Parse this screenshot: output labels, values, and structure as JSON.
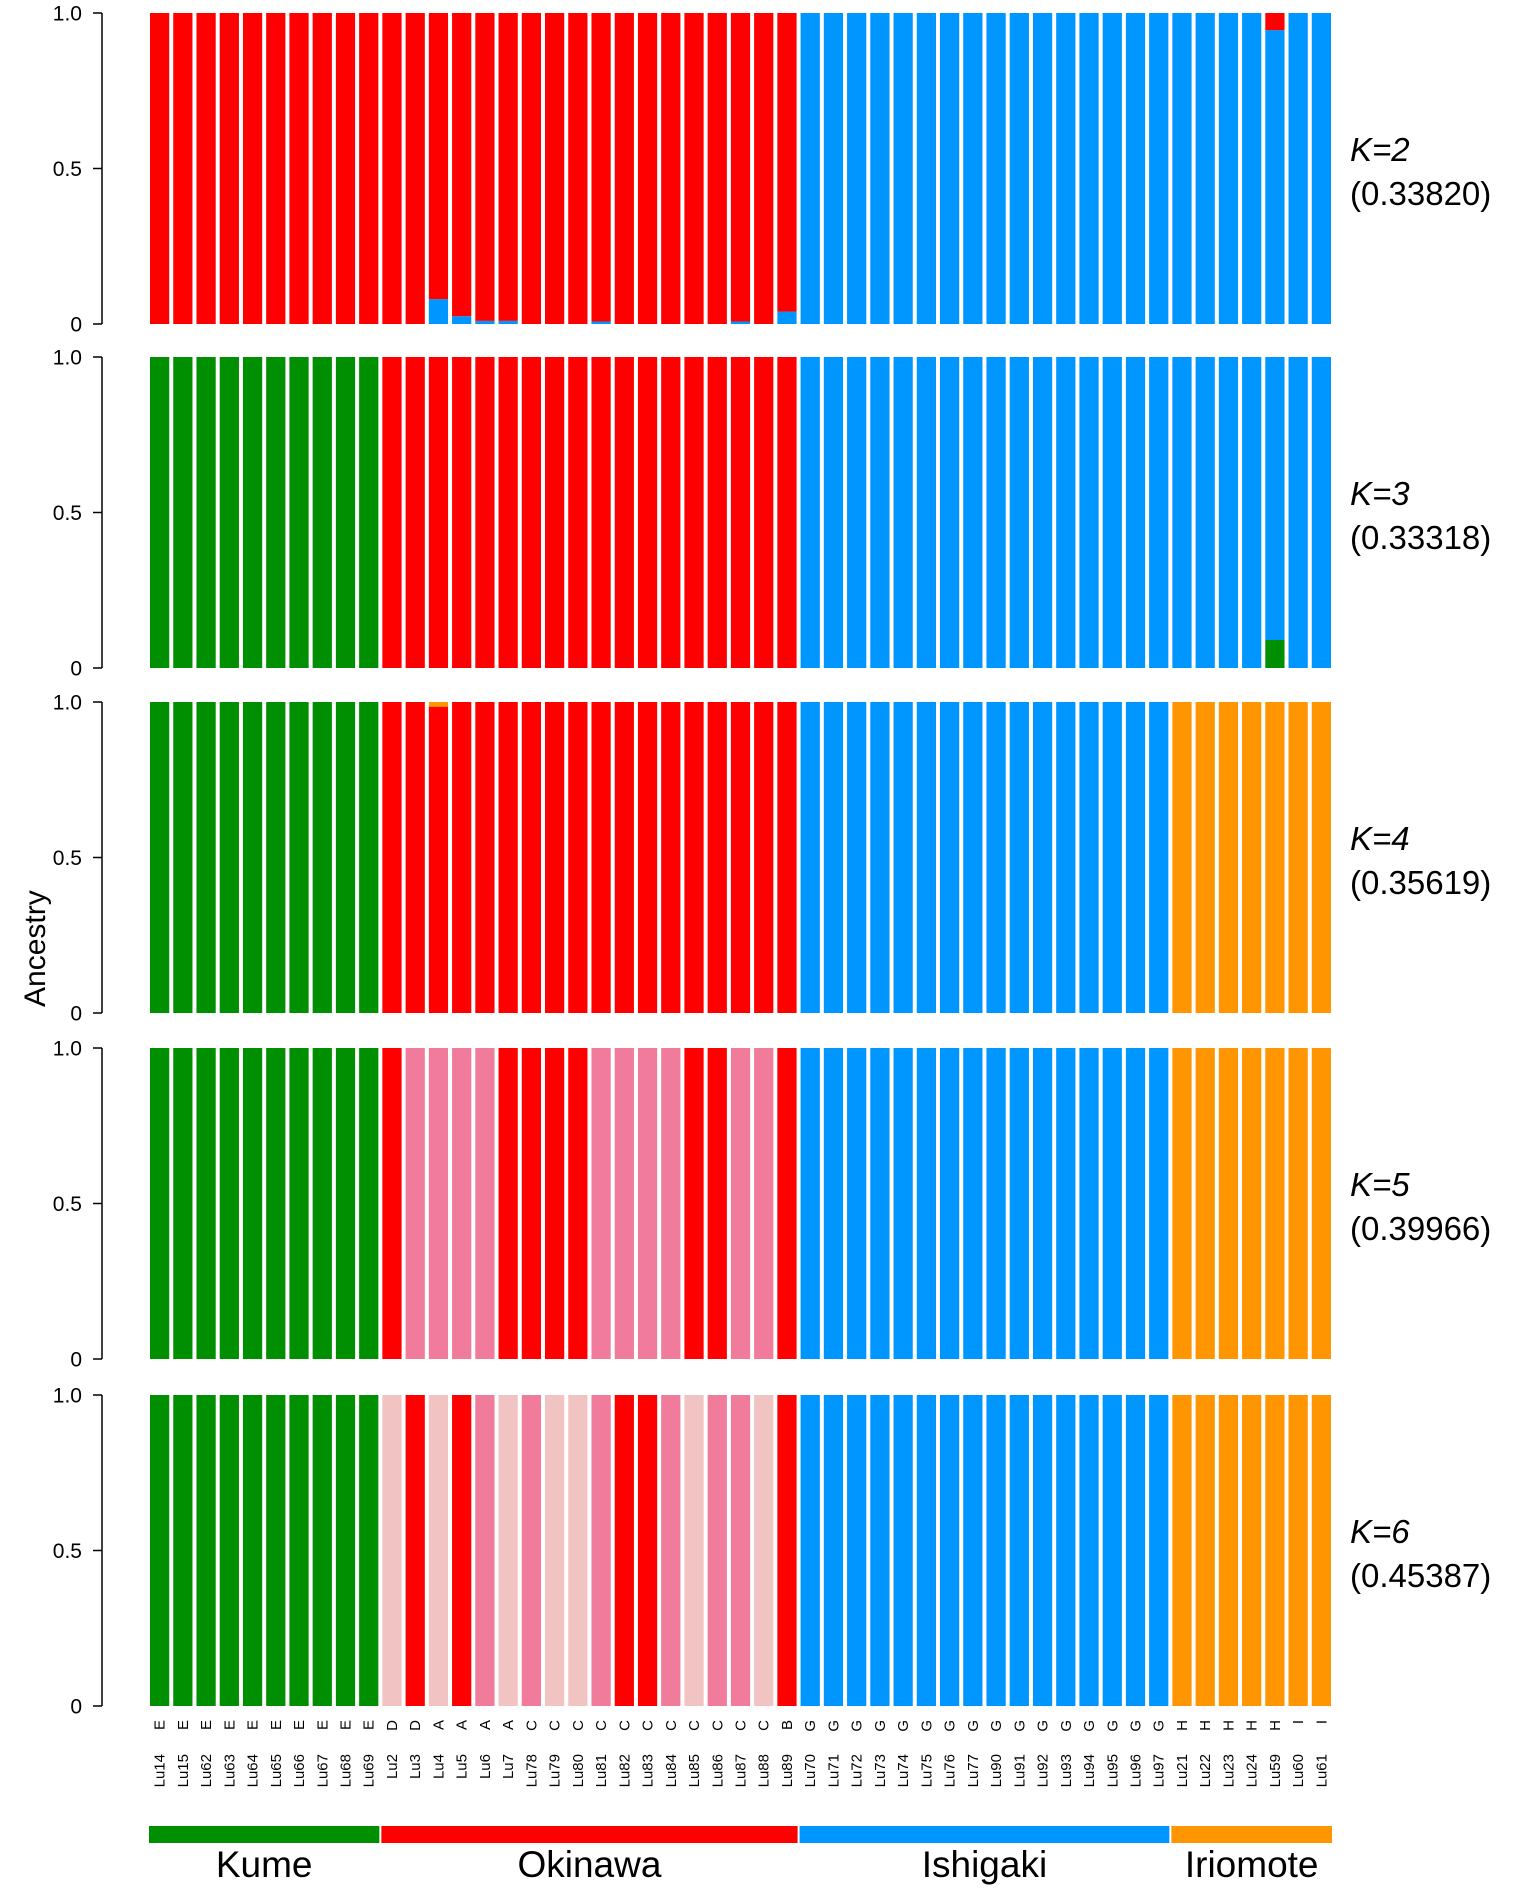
{
  "y_axis_label": "Ancestry",
  "colors": {
    "green": "#008f00",
    "red": "#ff0000",
    "pink": "#f07b9a",
    "lightpink": "#f1c3c2",
    "blue": "#0096ff",
    "orange": "#ff9500"
  },
  "chart_data": {
    "type": "bar",
    "stacked": true,
    "ylim": [
      0,
      1
    ],
    "yticks": [
      "0",
      "0.5",
      "1.0"
    ],
    "samples": [
      "Lu14",
      "Lu15",
      "Lu62",
      "Lu63",
      "Lu64",
      "Lu65",
      "Lu66",
      "Lu67",
      "Lu68",
      "Lu69",
      "Lu2",
      "Lu3",
      "Lu4",
      "Lu5",
      "Lu6",
      "Lu7",
      "Lu78",
      "Lu79",
      "Lu80",
      "Lu81",
      "Lu82",
      "Lu83",
      "Lu84",
      "Lu85",
      "Lu86",
      "Lu87",
      "Lu88",
      "Lu89",
      "Lu70",
      "Lu71",
      "Lu72",
      "Lu73",
      "Lu74",
      "Lu75",
      "Lu76",
      "Lu77",
      "Lu90",
      "Lu91",
      "Lu92",
      "Lu93",
      "Lu94",
      "Lu95",
      "Lu96",
      "Lu97",
      "Lu21",
      "Lu22",
      "Lu23",
      "Lu24",
      "Lu59",
      "Lu60",
      "Lu61"
    ],
    "groups": [
      "E",
      "E",
      "E",
      "E",
      "E",
      "E",
      "E",
      "E",
      "E",
      "E",
      "D",
      "D",
      "A",
      "A",
      "A",
      "A",
      "C",
      "C",
      "C",
      "C",
      "C",
      "C",
      "C",
      "C",
      "C",
      "C",
      "C",
      "B",
      "G",
      "G",
      "G",
      "G",
      "G",
      "G",
      "G",
      "G",
      "G",
      "G",
      "G",
      "G",
      "G",
      "G",
      "G",
      "G",
      "H",
      "H",
      "H",
      "H",
      "H",
      "I",
      "I"
    ],
    "populations": [
      {
        "name": "Kume",
        "start": 0,
        "end": 9,
        "color": "#008f00"
      },
      {
        "name": "Okinawa",
        "start": 10,
        "end": 27,
        "color": "#ff0000"
      },
      {
        "name": "Ishigaki",
        "start": 28,
        "end": 43,
        "color": "#0096ff"
      },
      {
        "name": "Iriomote",
        "start": 44,
        "end": 50,
        "color": "#ff9500"
      }
    ],
    "panels": [
      {
        "k": "K=2",
        "ll": "(0.33820)",
        "base": [
          "red",
          "red",
          "red",
          "red",
          "red",
          "red",
          "red",
          "red",
          "red",
          "red",
          "red",
          "red",
          "red",
          "red",
          "red",
          "red",
          "red",
          "red",
          "red",
          "red",
          "red",
          "red",
          "red",
          "red",
          "red",
          "red",
          "red",
          "red",
          "blue",
          "blue",
          "blue",
          "blue",
          "blue",
          "blue",
          "blue",
          "blue",
          "blue",
          "blue",
          "blue",
          "blue",
          "blue",
          "blue",
          "blue",
          "blue",
          "blue",
          "blue",
          "blue",
          "blue",
          "blue",
          "blue",
          "blue"
        ],
        "mix": [
          {
            "i": 12,
            "comps": [
              [
                "blue",
                0.08
              ],
              [
                "red",
                0.92
              ]
            ]
          },
          {
            "i": 13,
            "comps": [
              [
                "blue",
                0.025
              ],
              [
                "red",
                0.975
              ]
            ]
          },
          {
            "i": 14,
            "comps": [
              [
                "blue",
                0.01
              ],
              [
                "red",
                0.99
              ]
            ]
          },
          {
            "i": 15,
            "comps": [
              [
                "blue",
                0.01
              ],
              [
                "red",
                0.99
              ]
            ]
          },
          {
            "i": 19,
            "comps": [
              [
                "blue",
                0.008
              ],
              [
                "red",
                0.992
              ]
            ]
          },
          {
            "i": 25,
            "comps": [
              [
                "blue",
                0.008
              ],
              [
                "red",
                0.992
              ]
            ]
          },
          {
            "i": 27,
            "comps": [
              [
                "blue",
                0.04
              ],
              [
                "red",
                0.96
              ]
            ]
          },
          {
            "i": 48,
            "comps": [
              [
                "blue",
                0.945
              ],
              [
                "red",
                0.055
              ]
            ]
          }
        ]
      },
      {
        "k": "K=3",
        "ll": "(0.33318)",
        "base": [
          "green",
          "green",
          "green",
          "green",
          "green",
          "green",
          "green",
          "green",
          "green",
          "green",
          "red",
          "red",
          "red",
          "red",
          "red",
          "red",
          "red",
          "red",
          "red",
          "red",
          "red",
          "red",
          "red",
          "red",
          "red",
          "red",
          "red",
          "red",
          "blue",
          "blue",
          "blue",
          "blue",
          "blue",
          "blue",
          "blue",
          "blue",
          "blue",
          "blue",
          "blue",
          "blue",
          "blue",
          "blue",
          "blue",
          "blue",
          "blue",
          "blue",
          "blue",
          "blue",
          "blue",
          "blue",
          "blue"
        ],
        "mix": [
          {
            "i": 48,
            "comps": [
              [
                "green",
                0.09
              ],
              [
                "blue",
                0.91
              ]
            ]
          }
        ]
      },
      {
        "k": "K=4",
        "ll": "(0.35619)",
        "base": [
          "green",
          "green",
          "green",
          "green",
          "green",
          "green",
          "green",
          "green",
          "green",
          "green",
          "red",
          "red",
          "red",
          "red",
          "red",
          "red",
          "red",
          "red",
          "red",
          "red",
          "red",
          "red",
          "red",
          "red",
          "red",
          "red",
          "red",
          "red",
          "blue",
          "blue",
          "blue",
          "blue",
          "blue",
          "blue",
          "blue",
          "blue",
          "blue",
          "blue",
          "blue",
          "blue",
          "blue",
          "blue",
          "blue",
          "blue",
          "orange",
          "orange",
          "orange",
          "orange",
          "orange",
          "orange",
          "orange"
        ],
        "mix": [
          {
            "i": 12,
            "comps": [
              [
                "red",
                0.985
              ],
              [
                "orange",
                0.015
              ]
            ]
          }
        ]
      },
      {
        "k": "K=5",
        "ll": "(0.39966)",
        "base": [
          "green",
          "green",
          "green",
          "green",
          "green",
          "green",
          "green",
          "green",
          "green",
          "green",
          "red",
          "pink",
          "pink",
          "pink",
          "pink",
          "red",
          "red",
          "red",
          "red",
          "pink",
          "pink",
          "pink",
          "pink",
          "red",
          "red",
          "pink",
          "pink",
          "red",
          "blue",
          "blue",
          "blue",
          "blue",
          "blue",
          "blue",
          "blue",
          "blue",
          "blue",
          "blue",
          "blue",
          "blue",
          "blue",
          "blue",
          "blue",
          "blue",
          "orange",
          "orange",
          "orange",
          "orange",
          "orange",
          "orange",
          "orange"
        ],
        "mix": []
      },
      {
        "k": "K=6",
        "ll": "(0.45387)",
        "base": [
          "green",
          "green",
          "green",
          "green",
          "green",
          "green",
          "green",
          "green",
          "green",
          "green",
          "lightpink",
          "red",
          "lightpink",
          "red",
          "pink",
          "lightpink",
          "pink",
          "lightpink",
          "lightpink",
          "pink",
          "red",
          "red",
          "pink",
          "lightpink",
          "pink",
          "pink",
          "lightpink",
          "red",
          "blue",
          "blue",
          "blue",
          "blue",
          "blue",
          "blue",
          "blue",
          "blue",
          "blue",
          "blue",
          "blue",
          "blue",
          "blue",
          "blue",
          "blue",
          "blue",
          "orange",
          "orange",
          "orange",
          "orange",
          "orange",
          "orange",
          "orange"
        ],
        "mix": []
      }
    ]
  }
}
